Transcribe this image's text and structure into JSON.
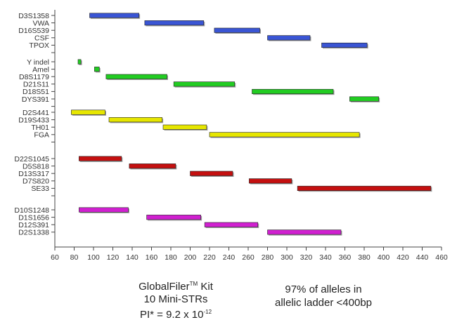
{
  "chart_data": {
    "type": "bar",
    "subtype": "horizontal-range",
    "xlim": [
      60,
      460
    ],
    "x_ticks": [
      60,
      80,
      100,
      120,
      140,
      160,
      180,
      200,
      220,
      240,
      260,
      280,
      300,
      320,
      340,
      360,
      380,
      400,
      420,
      440,
      460
    ],
    "grid": false,
    "colors": {
      "blue": "#3a55d4",
      "green": "#22cc22",
      "yellow": "#e6e600",
      "red": "#c41010",
      "magenta": "#d020d0"
    },
    "groups": [
      {
        "color": "blue",
        "markers": [
          {
            "name": "D3S1358",
            "start": 96,
            "end": 147
          },
          {
            "name": "VWA",
            "start": 153,
            "end": 214
          },
          {
            "name": "D16S539",
            "start": 225,
            "end": 272
          },
          {
            "name": "CSF",
            "start": 280,
            "end": 324
          },
          {
            "name": "TPOX",
            "start": 336,
            "end": 383
          }
        ]
      },
      {
        "color": "green",
        "markers": [
          {
            "name": "Y indel",
            "start": 84,
            "end": 87
          },
          {
            "name": "Amel",
            "start": 101,
            "end": 106
          },
          {
            "name": "D8S1179",
            "start": 113,
            "end": 176
          },
          {
            "name": "D21S11",
            "start": 183,
            "end": 246
          },
          {
            "name": "D18S51",
            "start": 264,
            "end": 348
          },
          {
            "name": "DYS391",
            "start": 365,
            "end": 395
          }
        ]
      },
      {
        "color": "yellow",
        "markers": [
          {
            "name": "D2S441",
            "start": 77,
            "end": 112
          },
          {
            "name": "D19S433",
            "start": 116,
            "end": 171
          },
          {
            "name": "TH01",
            "start": 172,
            "end": 217
          },
          {
            "name": "FGA",
            "start": 220,
            "end": 375
          }
        ]
      },
      {
        "color": "red",
        "markers": [
          {
            "name": "D22S1045",
            "start": 85,
            "end": 129
          },
          {
            "name": "D5S818",
            "start": 137,
            "end": 185
          },
          {
            "name": "D13S317",
            "start": 200,
            "end": 244
          },
          {
            "name": "D7S820",
            "start": 261,
            "end": 305
          },
          {
            "name": "SE33",
            "start": 311,
            "end": 449
          }
        ]
      },
      {
        "color": "magenta",
        "markers": [
          {
            "name": "D10S1248",
            "start": 85,
            "end": 136
          },
          {
            "name": "D1S1656",
            "start": 155,
            "end": 211
          },
          {
            "name": "D12S391",
            "start": 215,
            "end": 270
          },
          {
            "name": "D2S1338",
            "start": 280,
            "end": 356
          }
        ]
      }
    ]
  },
  "captions": {
    "left": {
      "kit_name": "GlobalFiler",
      "trademark": "TM",
      "kit_suffix": " Kit",
      "mini_strs": "10 Mini-STRs",
      "pi_prefix": "PI* =  9.2 x 10",
      "pi_exponent": "-12"
    },
    "right": {
      "line1": "97% of alleles in",
      "line2": "allelic ladder <400bp"
    }
  }
}
